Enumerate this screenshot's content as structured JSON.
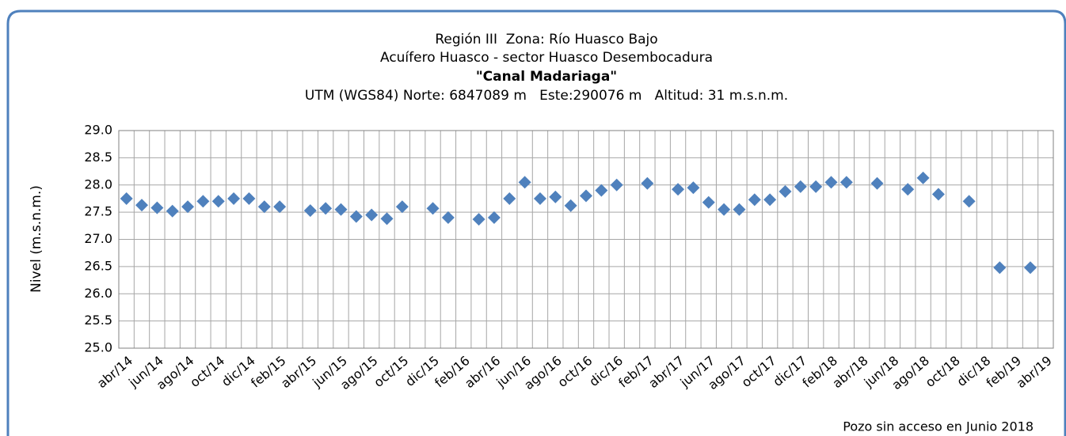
{
  "chart_data": {
    "type": "scatter",
    "title": "Región III  Zona: Río Huasco Bajo",
    "subtitle": "Acuífero Huasco - sector Huasco Desembocadura",
    "well_name": "\"Canal Madariaga\"",
    "coordinates": "UTM (WGS84) Norte: 6847089 m   Este:290076 m   Altitud: 31 m.s.n.m.",
    "y_label": "Nivel (m.s.n.m.)",
    "annotation": "Pozo sin acceso en Junio 2018",
    "color": "#4f81bd",
    "marker": "diamond",
    "grid": true,
    "ylim": [
      25.0,
      29.0
    ],
    "yticks": [
      {
        "value": 25,
        "label": "25.0"
      },
      25.5,
      {
        "value": 26,
        "label": "26.0"
      },
      26.5,
      {
        "value": 27,
        "label": "27.0"
      },
      27.5,
      {
        "value": 28,
        "label": "28.0"
      },
      28.5,
      {
        "value": 29,
        "label": "29.0"
      }
    ],
    "categories": [
      "abr/14",
      null,
      "jun/14",
      null,
      "ago/14",
      null,
      "oct/14",
      null,
      "dic/14",
      null,
      "feb/15",
      null,
      "abr/15",
      null,
      "jun/15",
      null,
      "ago/15",
      null,
      "oct/15",
      null,
      "dic/15",
      null,
      "feb/16",
      null,
      "abr/16",
      null,
      "jun/16",
      null,
      "ago/16",
      null,
      "oct/16",
      null,
      "dic/16",
      null,
      "feb/17",
      null,
      "abr/17",
      null,
      "jun/17",
      null,
      "ago/17",
      null,
      "oct/17",
      null,
      "dic/17",
      null,
      "feb/18",
      null,
      "abr/18",
      null,
      "jun/18",
      null,
      "ago/18",
      null,
      "oct/18",
      null,
      "dic/18",
      null,
      "feb/19",
      null,
      "abr/19"
    ],
    "values": [
      27.75,
      27.63,
      27.58,
      27.52,
      27.6,
      27.7,
      27.7,
      27.75,
      27.75,
      27.6,
      27.6,
      null,
      27.53,
      27.57,
      27.55,
      27.42,
      27.45,
      27.38,
      27.6,
      null,
      27.57,
      27.4,
      null,
      27.37,
      27.4,
      27.75,
      28.05,
      27.75,
      27.78,
      27.62,
      27.8,
      27.9,
      28.0,
      null,
      28.03,
      null,
      27.92,
      27.95,
      27.68,
      27.55,
      27.55,
      27.73,
      27.73,
      27.88,
      27.97,
      27.97,
      28.05,
      28.05,
      null,
      28.03,
      null,
      27.92,
      28.13,
      27.83,
      null,
      27.7,
      null,
      26.48,
      null,
      26.48,
      null
    ]
  }
}
